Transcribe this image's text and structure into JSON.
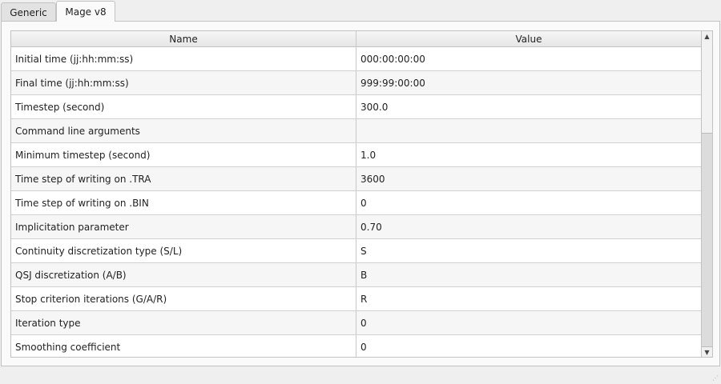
{
  "tabs": [
    {
      "label": "Generic",
      "active": false
    },
    {
      "label": "Mage v8",
      "active": true
    }
  ],
  "table": {
    "columns": [
      "Name",
      "Value"
    ],
    "rows": [
      {
        "name": "Initial time (jj:hh:mm:ss)",
        "value": "000:00:00:00"
      },
      {
        "name": "Final time (jj:hh:mm:ss)",
        "value": "999:99:00:00"
      },
      {
        "name": "Timestep (second)",
        "value": "300.0"
      },
      {
        "name": "Command line arguments",
        "value": ""
      },
      {
        "name": "Minimum timestep (second)",
        "value": "1.0"
      },
      {
        "name": "Time step of writing on .TRA",
        "value": "3600"
      },
      {
        "name": "Time step of writing on .BIN",
        "value": "0"
      },
      {
        "name": "Implicitation parameter",
        "value": "0.70"
      },
      {
        "name": "Continuity discretization type (S/L)",
        "value": "S"
      },
      {
        "name": "QSJ discretization (A/B)",
        "value": "B"
      },
      {
        "name": "Stop criterion iterations (G/A/R)",
        "value": "R"
      },
      {
        "name": "Iteration type",
        "value": "0"
      },
      {
        "name": "Smoothing coefficient",
        "value": "0"
      }
    ]
  },
  "scrollbar": {
    "position_percent": 0,
    "visible_fraction": 0.3
  }
}
